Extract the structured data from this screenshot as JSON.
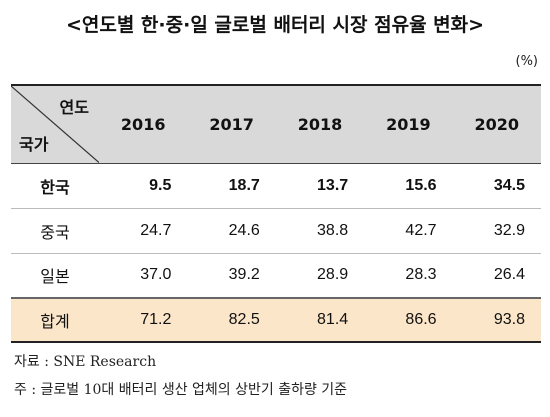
{
  "title": "<연도별 한·중·일 글로벌 배터리 시장 점유율 변화>",
  "unit": "(%)",
  "table": {
    "corner_top": "연도",
    "corner_bottom": "국가",
    "years": [
      "2016",
      "2017",
      "2018",
      "2019",
      "2020"
    ],
    "rows": [
      {
        "country": "한국",
        "values": [
          "9.5",
          "18.7",
          "13.7",
          "15.6",
          "34.5"
        ]
      },
      {
        "country": "중국",
        "values": [
          "24.7",
          "24.6",
          "38.8",
          "42.7",
          "32.9"
        ]
      },
      {
        "country": "일본",
        "values": [
          "37.0",
          "39.2",
          "28.9",
          "28.3",
          "26.4"
        ]
      }
    ],
    "total": {
      "country": "합계",
      "values": [
        "71.2",
        "82.5",
        "81.4",
        "86.6",
        "93.8"
      ]
    }
  },
  "notes": {
    "source": "자료 : SNE Research",
    "footnote": "주 : 글로벌 10대 배터리 생산 업체의 상반기 출하량 기준"
  },
  "colors": {
    "header_bg": "#d9d9d9",
    "total_bg": "#fbe6c9"
  }
}
